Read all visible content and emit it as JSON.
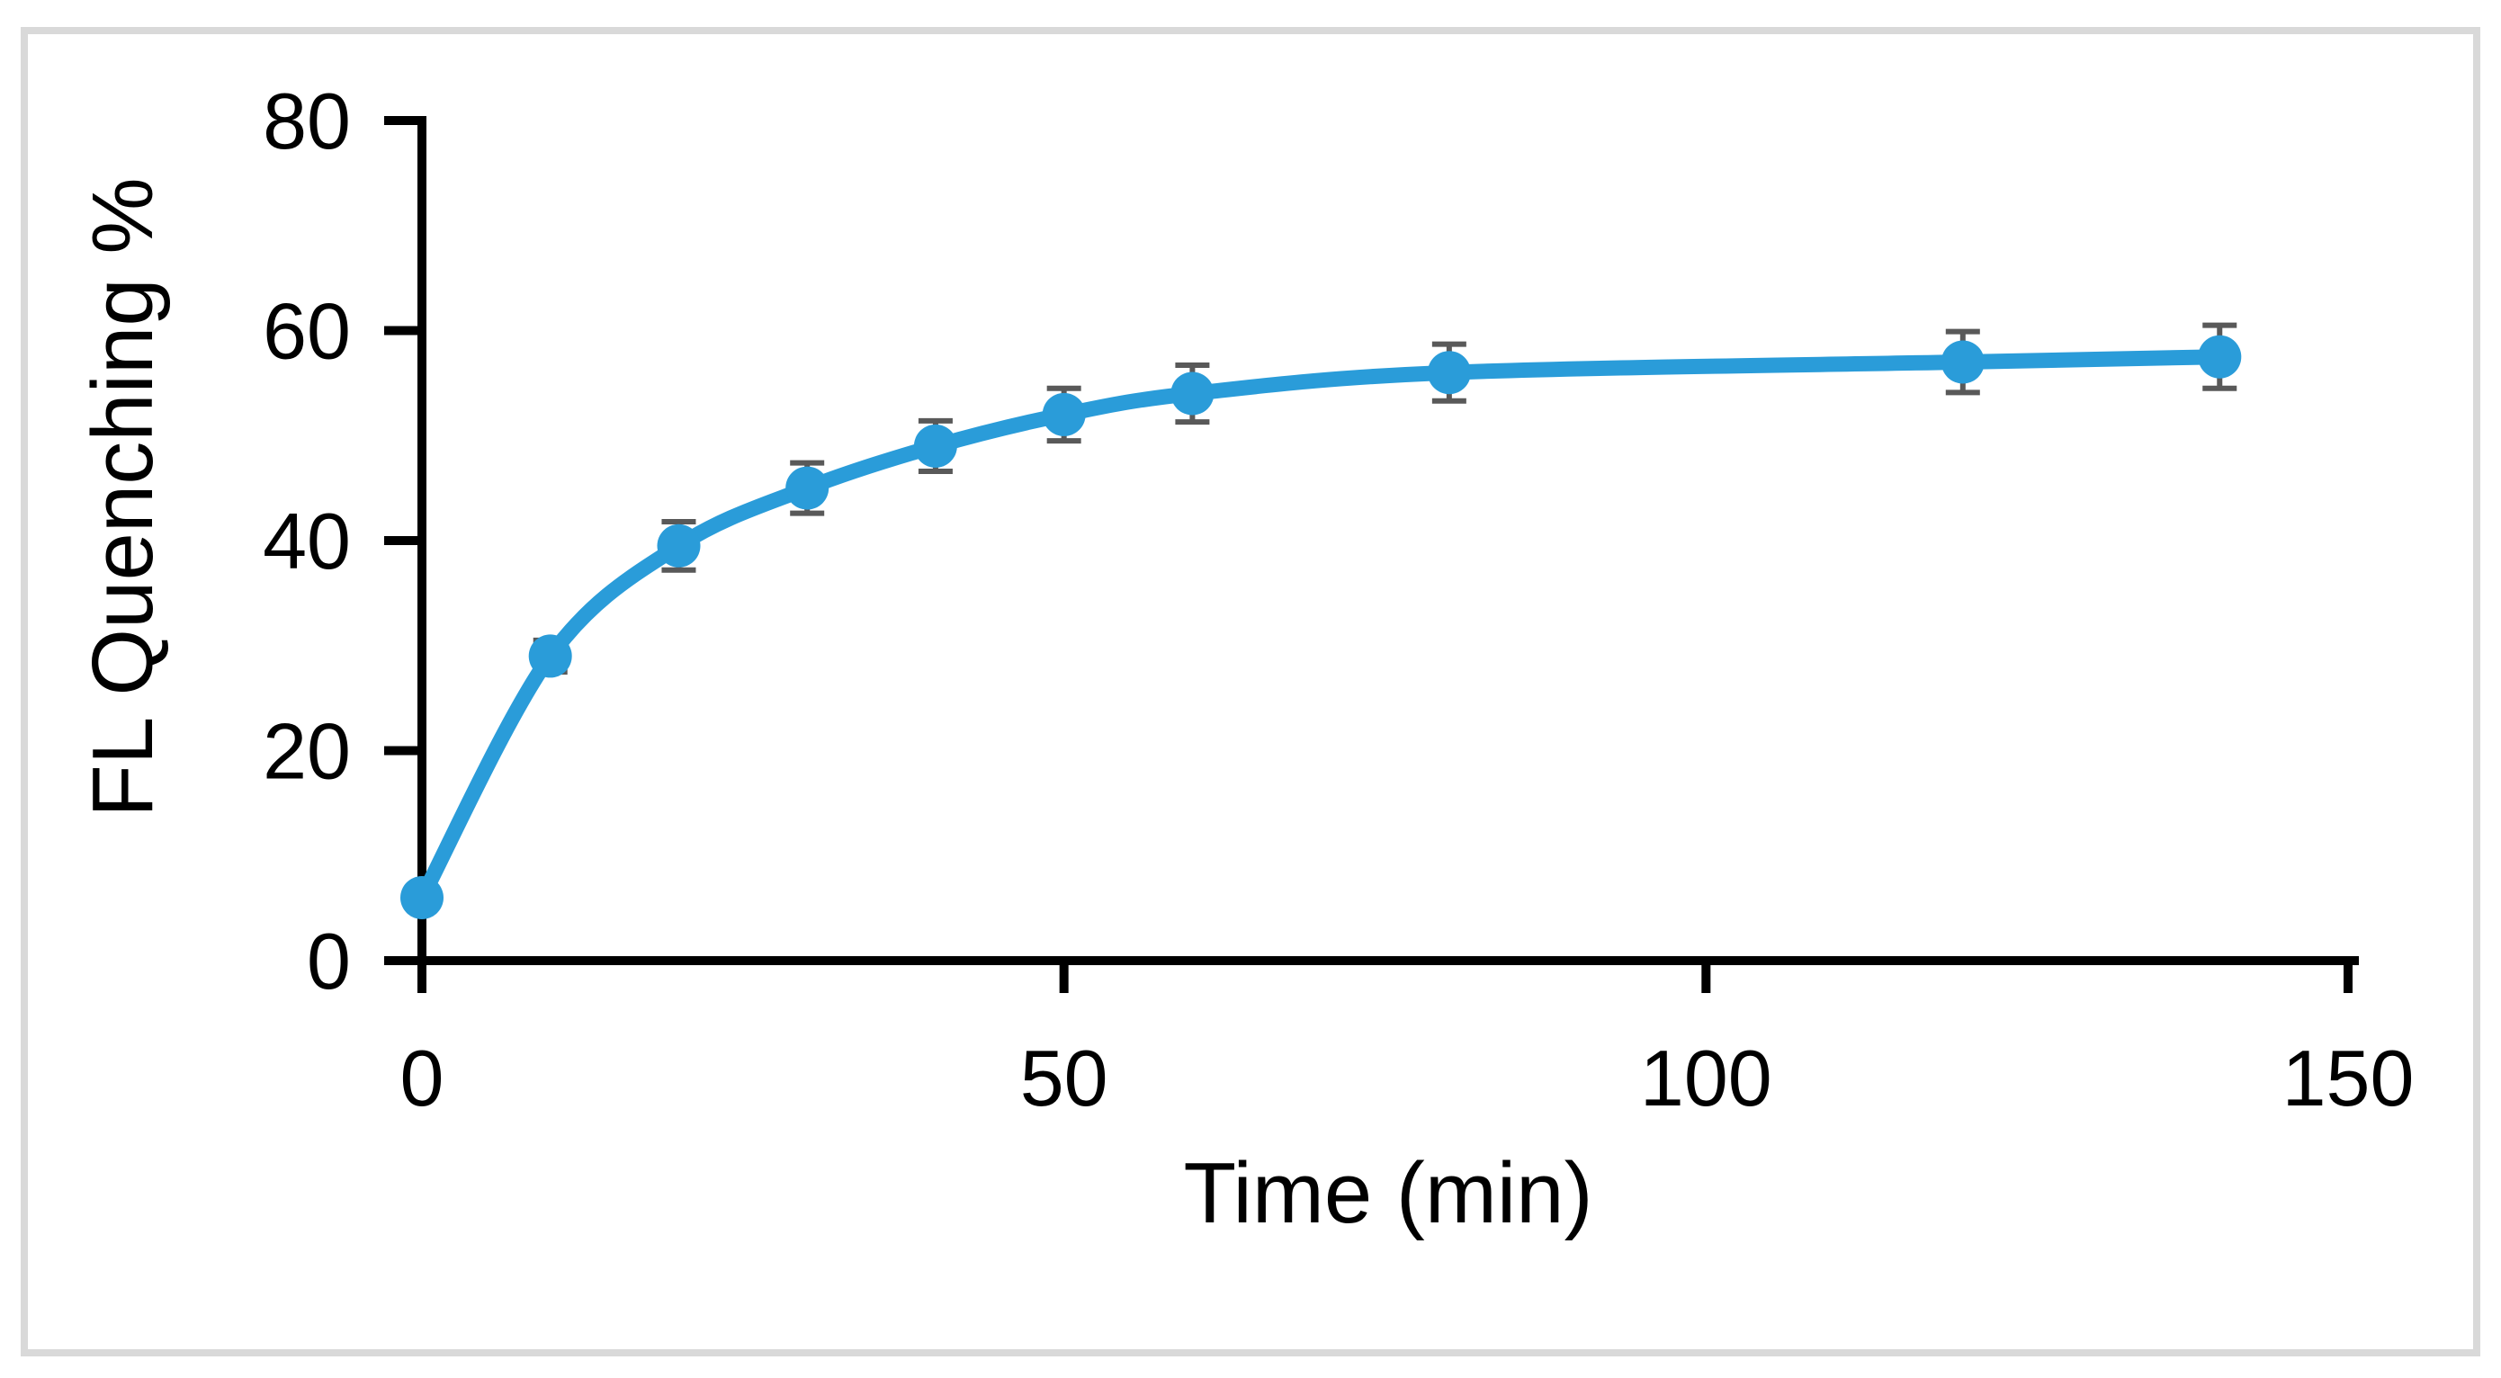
{
  "chart_data": {
    "type": "line",
    "title": "",
    "xlabel": "Time (min)",
    "ylabel": "FL Quenching %",
    "x": [
      0,
      10,
      20,
      30,
      40,
      50,
      60,
      80,
      120,
      140
    ],
    "series": [
      {
        "name": "FL Quenching %",
        "values": [
          6,
          29,
          39.5,
          45,
          49,
          52,
          54,
          56,
          57,
          57.5
        ],
        "errors": [
          0.5,
          1.5,
          2.3,
          2.4,
          2.4,
          2.5,
          2.7,
          2.7,
          2.9,
          3.0
        ]
      }
    ],
    "xlim": [
      0,
      150
    ],
    "ylim": [
      0,
      80
    ],
    "x_tick_labels": [
      "0",
      "50",
      "100",
      "150"
    ],
    "x_tick_values": [
      0,
      50,
      100,
      150
    ],
    "y_tick_labels": [
      "0",
      "20",
      "40",
      "60",
      "80"
    ],
    "y_tick_values": [
      0,
      20,
      40,
      60,
      80
    ],
    "grid": false,
    "legend_position": "none",
    "smooth_line": true,
    "marker": "circle",
    "colors": {
      "series": "#2a9cd9",
      "error_bar": "#595959",
      "axis": "#000000",
      "tick_label": "#000000",
      "frame_border": "#d9d9d9",
      "background": "#ffffff"
    }
  }
}
